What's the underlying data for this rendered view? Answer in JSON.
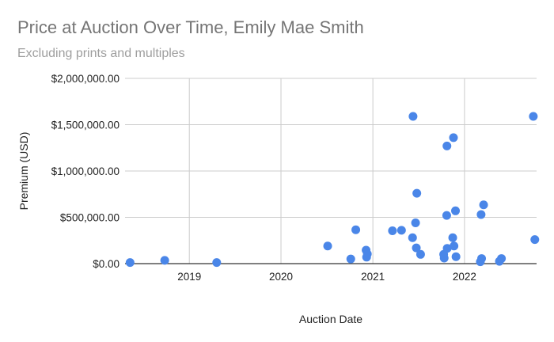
{
  "chart_data": {
    "type": "scatter",
    "title": "Price at Auction Over Time, Emily Mae Smith",
    "subtitle": "Excluding prints and multiples",
    "xlabel": "Auction Date",
    "ylabel": "Premium (USD)",
    "x_type": "date",
    "xlim": [
      "2018-04-20",
      "2022-10-15"
    ],
    "ylim": [
      0,
      2000000
    ],
    "x_ticks": [
      {
        "date": "2019-01-01",
        "label": "2019"
      },
      {
        "date": "2020-01-01",
        "label": "2020"
      },
      {
        "date": "2021-01-01",
        "label": "2021"
      },
      {
        "date": "2022-01-01",
        "label": "2022"
      }
    ],
    "y_ticks": [
      {
        "value": 0,
        "label": "$0.00"
      },
      {
        "value": 500000,
        "label": "$500,000.00"
      },
      {
        "value": 1000000,
        "label": "$1,000,000.00"
      },
      {
        "value": 1500000,
        "label": "$1,500,000.00"
      },
      {
        "value": 2000000,
        "label": "$2,000,000.00"
      }
    ],
    "grid": true,
    "legend": "none",
    "point_color": "#4a86e8",
    "points": [
      {
        "x": "2018-05-10",
        "y": 12000
      },
      {
        "x": "2018-09-25",
        "y": 35000
      },
      {
        "x": "2019-04-20",
        "y": 12000
      },
      {
        "x": "2020-07-05",
        "y": 190000
      },
      {
        "x": "2020-10-05",
        "y": 50000
      },
      {
        "x": "2020-10-25",
        "y": 365000
      },
      {
        "x": "2020-12-05",
        "y": 145000
      },
      {
        "x": "2020-12-07",
        "y": 70000
      },
      {
        "x": "2020-12-10",
        "y": 105000
      },
      {
        "x": "2021-03-20",
        "y": 355000
      },
      {
        "x": "2021-04-25",
        "y": 360000
      },
      {
        "x": "2021-06-10",
        "y": 1590000
      },
      {
        "x": "2021-06-08",
        "y": 280000
      },
      {
        "x": "2021-06-20",
        "y": 440000
      },
      {
        "x": "2021-06-25",
        "y": 760000
      },
      {
        "x": "2021-06-23",
        "y": 170000
      },
      {
        "x": "2021-07-10",
        "y": 100000
      },
      {
        "x": "2021-10-10",
        "y": 100000
      },
      {
        "x": "2021-10-12",
        "y": 60000
      },
      {
        "x": "2021-10-22",
        "y": 520000
      },
      {
        "x": "2021-10-23",
        "y": 1270000
      },
      {
        "x": "2021-10-24",
        "y": 165000
      },
      {
        "x": "2021-11-15",
        "y": 280000
      },
      {
        "x": "2021-11-18",
        "y": 1360000
      },
      {
        "x": "2021-11-20",
        "y": 190000
      },
      {
        "x": "2021-11-26",
        "y": 570000
      },
      {
        "x": "2021-11-28",
        "y": 75000
      },
      {
        "x": "2022-03-05",
        "y": 20000
      },
      {
        "x": "2022-03-08",
        "y": 530000
      },
      {
        "x": "2022-03-10",
        "y": 55000
      },
      {
        "x": "2022-03-18",
        "y": 635000
      },
      {
        "x": "2022-05-20",
        "y": 25000
      },
      {
        "x": "2022-05-28",
        "y": 55000
      },
      {
        "x": "2022-10-02",
        "y": 1590000
      },
      {
        "x": "2022-10-08",
        "y": 260000
      }
    ]
  }
}
